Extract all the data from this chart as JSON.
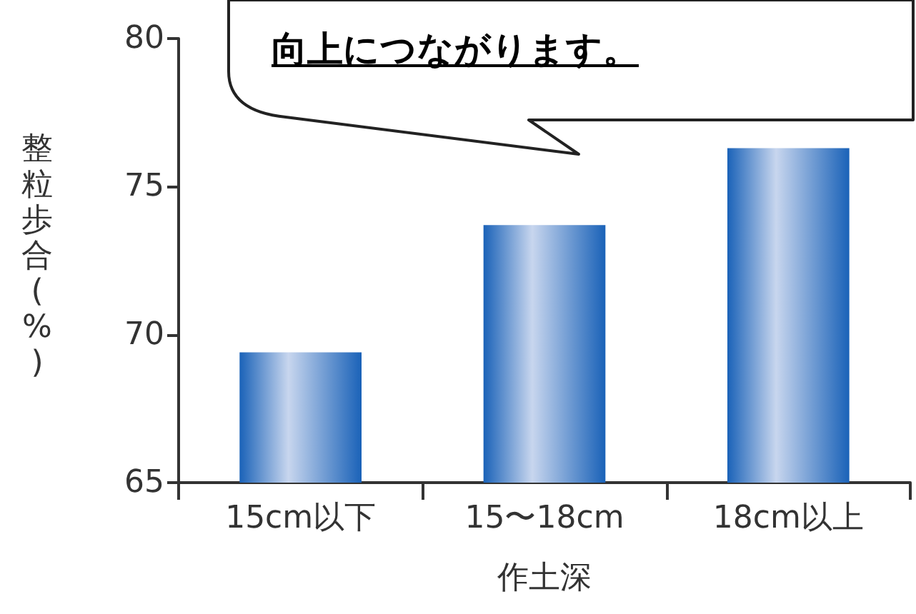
{
  "chart_data": {
    "type": "bar",
    "xlabel": "作土深",
    "ylabel": "整粒歩合(%)",
    "categories": [
      "15cm以下",
      "15〜18cm",
      "18cm以上"
    ],
    "values": [
      69.4,
      73.7,
      76.3
    ],
    "color": "#1a62b8",
    "ylim": [
      65,
      80
    ],
    "yticks": [
      65,
      70,
      75,
      80
    ],
    "grid": false,
    "annotations": [
      "向上につながります。"
    ]
  }
}
